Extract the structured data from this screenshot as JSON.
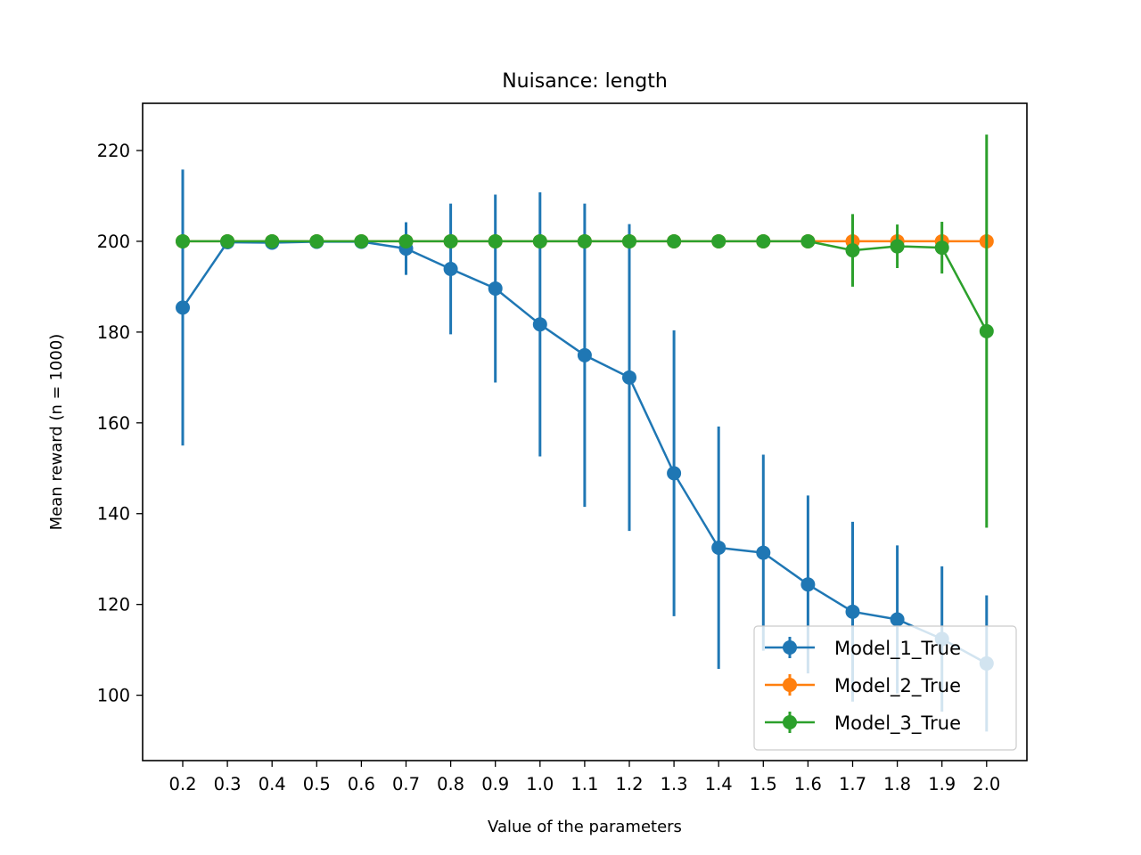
{
  "chart_data": {
    "type": "line",
    "title": "Nuisance: length",
    "xlabel": "Value of the parameters",
    "ylabel": "Mean reward (n = 1000)",
    "x": [
      "0.2",
      "0.3",
      "0.4",
      "0.5",
      "0.6",
      "0.7",
      "0.8",
      "0.9",
      "1.0",
      "1.1",
      "1.2",
      "1.3",
      "1.4",
      "1.5",
      "1.6",
      "1.7",
      "1.8",
      "1.9",
      "2.0"
    ],
    "ylim": [
      85.6,
      230.4
    ],
    "yticks": [
      100,
      120,
      140,
      160,
      180,
      200,
      220
    ],
    "grid": false,
    "legend_position": "lower right",
    "error_bars": true,
    "series": [
      {
        "name": "Model_1_True",
        "color": "#1f77b4",
        "values": [
          185.4,
          199.8,
          199.7,
          199.9,
          199.9,
          198.4,
          193.9,
          189.6,
          181.7,
          174.9,
          170.0,
          148.9,
          132.5,
          131.4,
          124.4,
          118.4,
          116.7,
          112.4,
          107.0
        ],
        "errors": [
          30.4,
          0.4,
          0.6,
          0.3,
          0.3,
          5.8,
          14.4,
          20.7,
          29.1,
          33.4,
          33.8,
          31.5,
          26.7,
          21.6,
          19.6,
          19.8,
          16.3,
          16.0,
          15.0
        ]
      },
      {
        "name": "Model_2_True",
        "color": "#ff7f0e",
        "values": [
          200,
          200,
          200,
          200,
          200,
          200,
          200,
          200,
          200,
          200,
          200,
          200,
          200,
          200,
          200,
          200,
          200,
          200,
          200
        ],
        "errors": [
          0,
          0,
          0,
          0,
          0,
          0,
          0,
          0,
          0,
          0,
          0,
          0,
          0,
          0,
          0,
          0,
          0,
          0,
          0
        ]
      },
      {
        "name": "Model_3_True",
        "color": "#2ca02c",
        "values": [
          200,
          200,
          200,
          200,
          200,
          200,
          200,
          200,
          200,
          200,
          200,
          200,
          200,
          200,
          200,
          198.0,
          198.9,
          198.6,
          180.2
        ],
        "errors": [
          0,
          0,
          0,
          0,
          0,
          0,
          0,
          0,
          0,
          0,
          0,
          0,
          0,
          0,
          0,
          8.0,
          4.8,
          5.7,
          43.3
        ]
      }
    ]
  }
}
